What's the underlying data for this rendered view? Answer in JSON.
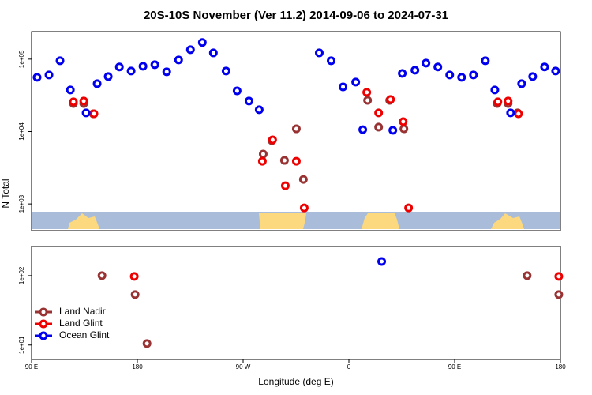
{
  "chart_data": [
    {
      "type": "scatter",
      "title": "20S-10S November (Ver 11.2)   2014-09-06 to 2024-07-31",
      "y_label": "N Total",
      "log_y": true,
      "xlim": [
        90,
        540
      ],
      "ylim": [
        427,
        240000
      ],
      "yticks": [
        {
          "value": 1000,
          "label": "1e+03"
        },
        {
          "value": 10000,
          "label": "1e+04"
        },
        {
          "value": 100000,
          "label": "1e+05"
        }
      ],
      "series": [
        {
          "color": "#993333",
          "x": [
            125.6,
            134.4,
            142.5,
            287.1,
            294.5,
            305.2,
            315.3,
            321.3,
            375.9,
            385.3,
            394.7,
            406.8,
            486.2,
            495.5,
            503.6
          ],
          "values": [
            24400,
            24400,
            17600,
            4890,
            7480,
            3990,
            10900,
            2180,
            27000,
            11500,
            27000,
            10900,
            24400,
            24400,
            18100
          ]
        },
        {
          "color": "#ee0000",
          "x": [
            125.6,
            134.4,
            143.1,
            286.4,
            295.1,
            305.9,
            315.3,
            322.0,
            375.2,
            385.3,
            395.4,
            406.2,
            410.8,
            486.8,
            495.5,
            504.3
          ],
          "values": [
            25700,
            26400,
            17600,
            3890,
            7670,
            1780,
            3890,
            881,
            34800,
            18100,
            27700,
            13700,
            881,
            25700,
            26400,
            17600
          ]
        },
        {
          "color": "#0000ee",
          "x": [
            94.7,
            104.8,
            114.2,
            123.0,
            136.4,
            145.8,
            155.2,
            164.7,
            174.7,
            184.8,
            194.9,
            205.0,
            215.1,
            225.2,
            235.3,
            244.7,
            255.5,
            264.9,
            275.0,
            283.7,
            334.8,
            344.9,
            355.0,
            365.8,
            371.8,
            397.4,
            405.4,
            416.2,
            425.6,
            435.7,
            445.8,
            455.9,
            466.0,
            476.1,
            484.2,
            497.6,
            507.0,
            516.4,
            526.5,
            535.9
          ],
          "values": [
            56100,
            60400,
            95000,
            37500,
            18100,
            45800,
            57500,
            77900,
            68600,
            79800,
            83800,
            66800,
            97500,
            135000,
            170000,
            122000,
            68600,
            36500,
            26400,
            20000,
            122000,
            95000,
            41400,
            48200,
            10600,
            10400,
            63500,
            70300,
            88200,
            77900,
            60400,
            56100,
            60400,
            95000,
            37500,
            18100,
            45800,
            57500,
            77900,
            68600
          ]
        }
      ]
    },
    {
      "type": "scatter",
      "x_label": "Longitude (deg E)",
      "log_y": true,
      "legend": "lower left",
      "xlim": [
        90,
        540
      ],
      "ylim": [
        6.2,
        263
      ],
      "xticks": [
        {
          "value": 90,
          "label": "90 E"
        },
        180,
        {
          "value": 270,
          "label": "90 W"
        },
        {
          "value": 360,
          "label": "0"
        },
        {
          "value": 450,
          "label": "90 E"
        },
        {
          "value": 540,
          "label": "180"
        }
      ],
      "yticks": [
        {
          "value": 10,
          "label": "1e+01"
        },
        {
          "value": 100,
          "label": "1e+02"
        }
      ],
      "series": [
        {
          "name": "Land Nadir",
          "color": "#993333",
          "x": [
            149.9,
            178.1,
            188.2,
            511.7,
            538.6
          ],
          "values": [
            100,
            53.4,
            10.5,
            100,
            53.4
          ]
        },
        {
          "name": "Land Glint",
          "color": "#ee0000",
          "x": [
            177.4,
            538.6
          ],
          "values": [
            97.4,
            97.4
          ]
        },
        {
          "name": "Ocean Glint",
          "color": "#0000ee",
          "x": [
            387.9
          ],
          "values": [
            160
          ]
        }
      ]
    }
  ]
}
